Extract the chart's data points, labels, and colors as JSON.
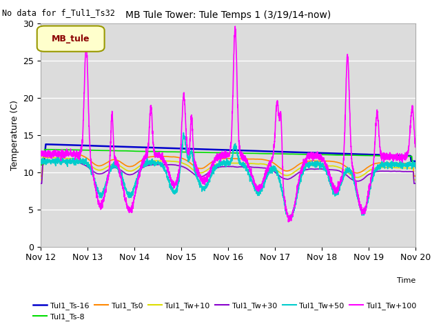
{
  "title": "MB Tule Tower: Tule Temps 1 (3/19/14-now)",
  "no_data_text": "No data for f_Tul1_Ts32",
  "ylabel": "Temperature (C)",
  "xlabel": "Time",
  "xlim": [
    0,
    8
  ],
  "ylim": [
    0,
    30
  ],
  "yticks": [
    0,
    5,
    10,
    15,
    20,
    25,
    30
  ],
  "xtick_labels": [
    "Nov 12",
    "Nov 13",
    "Nov 14",
    "Nov 15",
    "Nov 16",
    "Nov 17",
    "Nov 18",
    "Nov 19",
    "Nov 20"
  ],
  "bg_color": "#dcdcdc",
  "fig_bg": "#ffffff",
  "legend_box_color": "#ffffcc",
  "legend_box_text": "MB_tule",
  "legend_box_text_color": "#8b0000",
  "series": {
    "Tul1_Ts-16": {
      "color": "#0000cc",
      "lw": 1.8
    },
    "Tul1_Ts-8": {
      "color": "#00dd00",
      "lw": 1.2
    },
    "Tul1_Ts0": {
      "color": "#ff8800",
      "lw": 1.2
    },
    "Tul1_Tw+10": {
      "color": "#dddd00",
      "lw": 1.2
    },
    "Tul1_Tw+30": {
      "color": "#8800cc",
      "lw": 1.2
    },
    "Tul1_Tw+50": {
      "color": "#00cccc",
      "lw": 1.2
    },
    "Tul1_Tw+100": {
      "color": "#ff00ff",
      "lw": 1.2
    }
  }
}
